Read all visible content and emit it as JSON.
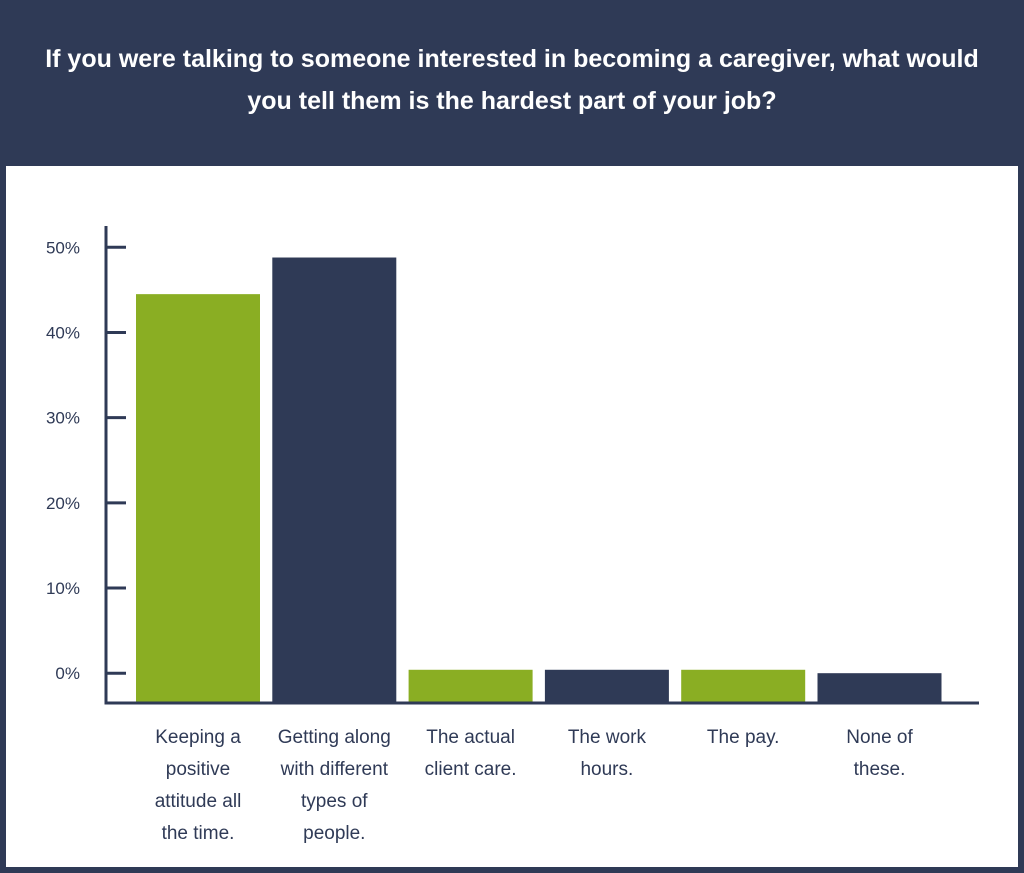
{
  "chart_data": {
    "type": "bar",
    "title": "If you were talking to someone interested in becoming a caregiver, what would you tell them is the hardest part of your job?",
    "categories": [
      [
        "Keeping a",
        "positive",
        "attitude all",
        "the time."
      ],
      [
        "Getting along",
        "with different",
        "types of",
        "people."
      ],
      [
        "The actual",
        "client care."
      ],
      [
        "The work",
        "hours."
      ],
      [
        "The pay."
      ],
      [
        "None of",
        "these."
      ]
    ],
    "values": [
      44.5,
      48.8,
      0.4,
      0.4,
      0.4,
      0.0
    ],
    "ylim": [
      -3.5,
      52.5
    ],
    "yticks": [
      0,
      10,
      20,
      30,
      40,
      50
    ],
    "ytick_labels": [
      "0%",
      "10%",
      "20%",
      "30%",
      "40%",
      "50%"
    ],
    "bar_colors": [
      "#8aae23",
      "#2f3a56",
      "#8aae23",
      "#2f3a56",
      "#8aae23",
      "#2f3a56"
    ],
    "axis_color": "#2f3a56",
    "grid": false,
    "legend": "none"
  }
}
